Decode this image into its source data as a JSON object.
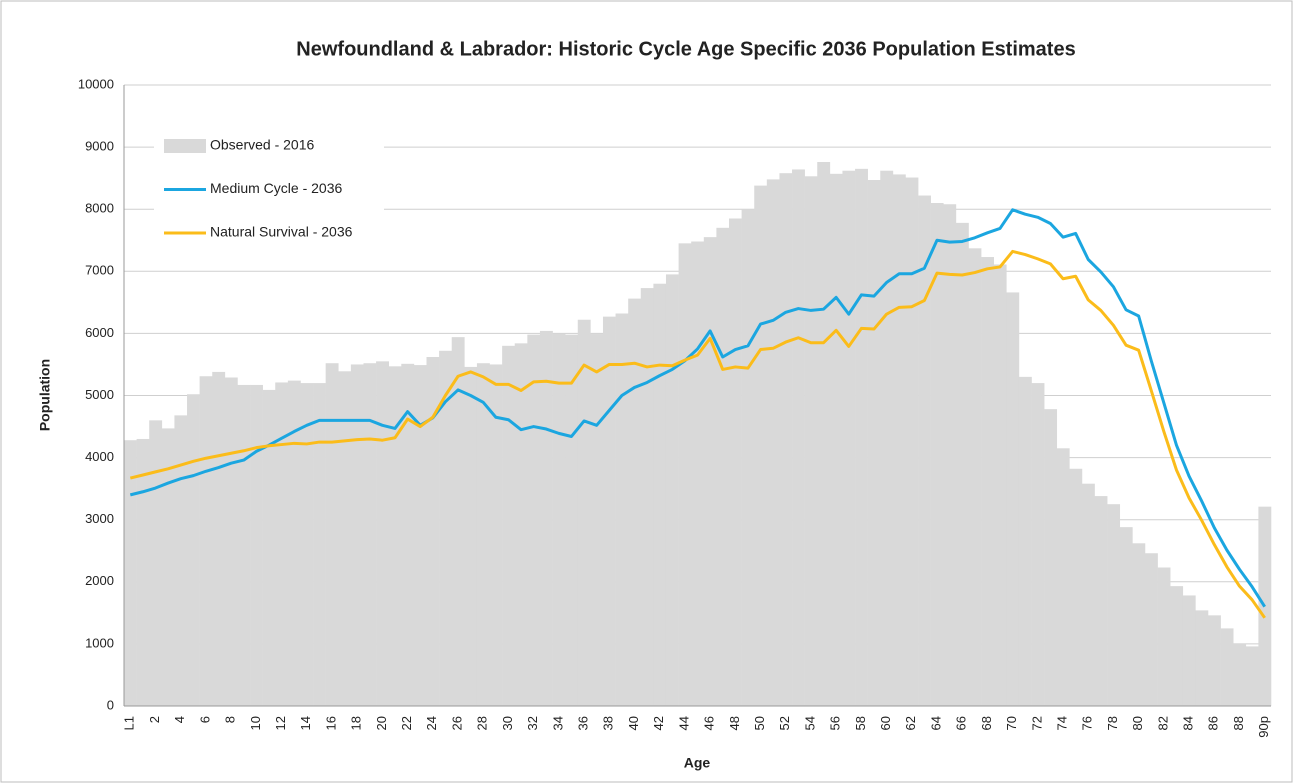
{
  "chart_data": {
    "type": "bar",
    "title": "Newfoundland & Labrador: Historic Cycle Age Specific 2036 Population Estimates",
    "x_label": "Age",
    "y_label": "Population",
    "categories": [
      "L1",
      null,
      "2",
      null,
      "4",
      null,
      "6",
      null,
      "8",
      null,
      "10",
      null,
      "12",
      null,
      "14",
      null,
      "16",
      null,
      "18",
      null,
      "20",
      null,
      "22",
      null,
      "24",
      null,
      "26",
      null,
      "28",
      null,
      "30",
      null,
      "32",
      null,
      "34",
      null,
      "36",
      null,
      "38",
      null,
      "40",
      null,
      "42",
      null,
      "44",
      null,
      "46",
      null,
      "48",
      null,
      "50",
      null,
      "52",
      null,
      "54",
      null,
      "56",
      null,
      "58",
      null,
      "60",
      null,
      "62",
      null,
      "64",
      null,
      "66",
      null,
      "68",
      null,
      "70",
      null,
      "72",
      null,
      "74",
      null,
      "76",
      null,
      "78",
      null,
      "80",
      null,
      "82",
      null,
      "84",
      null,
      "86",
      null,
      "88",
      null,
      "90p"
    ],
    "series": [
      {
        "name": "Observed - 2016",
        "type": "bar",
        "color": "#d9d9d9",
        "values": [
          4280,
          4300,
          4600,
          4470,
          4680,
          5020,
          5310,
          5380,
          5290,
          5170,
          5170,
          5090,
          5210,
          5240,
          5200,
          5200,
          5520,
          5390,
          5500,
          5520,
          5550,
          5470,
          5510,
          5490,
          5620,
          5720,
          5940,
          5460,
          5520,
          5500,
          5800,
          5840,
          5980,
          6040,
          6000,
          5980,
          6220,
          5990,
          6270,
          6320,
          6560,
          6730,
          6800,
          6950,
          7450,
          7480,
          7550,
          7700,
          7850,
          8000,
          8380,
          8480,
          8580,
          8640,
          8530,
          8760,
          8570,
          8620,
          8650,
          8470,
          8620,
          8560,
          8510,
          8220,
          8100,
          8080,
          7780,
          7370,
          7230,
          7110,
          6660,
          5300,
          5200,
          4780,
          4150,
          3820,
          3580,
          3380,
          3250,
          2880,
          2620,
          2460,
          2230,
          1930,
          1780,
          1540,
          1460,
          1250,
          1000,
          960,
          3210
        ]
      },
      {
        "name": "Medium Cycle - 2036",
        "type": "line",
        "color": "#1ba6e0",
        "values": [
          3400,
          3450,
          3510,
          3590,
          3660,
          3710,
          3780,
          3840,
          3910,
          3960,
          4100,
          4200,
          4310,
          4420,
          4520,
          4600,
          4600,
          4600,
          4600,
          4600,
          4520,
          4470,
          4740,
          4520,
          4640,
          4900,
          5090,
          5000,
          4890,
          4650,
          4610,
          4450,
          4500,
          4460,
          4390,
          4340,
          4590,
          4520,
          4760,
          5000,
          5130,
          5210,
          5320,
          5420,
          5560,
          5750,
          6040,
          5620,
          5740,
          5800,
          6150,
          6210,
          6340,
          6400,
          6370,
          6390,
          6580,
          6310,
          6620,
          6600,
          6820,
          6960,
          6960,
          7050,
          7500,
          7470,
          7480,
          7540,
          7620,
          7690,
          7990,
          7920,
          7870,
          7770,
          7550,
          7610,
          7190,
          6990,
          6750,
          6380,
          6280,
          5560,
          4880,
          4200,
          3700,
          3300,
          2870,
          2510,
          2200,
          1920,
          1600
        ]
      },
      {
        "name": "Natural Survival - 2036",
        "type": "line",
        "color": "#fbbc1a",
        "values": [
          3670,
          3720,
          3770,
          3820,
          3880,
          3940,
          3990,
          4030,
          4070,
          4110,
          4160,
          4190,
          4210,
          4230,
          4220,
          4250,
          4250,
          4270,
          4290,
          4300,
          4280,
          4320,
          4620,
          4500,
          4650,
          5000,
          5310,
          5380,
          5300,
          5180,
          5180,
          5080,
          5220,
          5230,
          5200,
          5200,
          5490,
          5380,
          5500,
          5500,
          5520,
          5460,
          5490,
          5480,
          5570,
          5650,
          5920,
          5420,
          5460,
          5440,
          5740,
          5760,
          5860,
          5930,
          5850,
          5850,
          6050,
          5790,
          6080,
          6070,
          6310,
          6420,
          6430,
          6530,
          6970,
          6950,
          6940,
          6980,
          7040,
          7070,
          7320,
          7270,
          7200,
          7120,
          6880,
          6920,
          6540,
          6370,
          6130,
          5810,
          5730,
          5080,
          4420,
          3800,
          3350,
          2990,
          2600,
          2240,
          1930,
          1710,
          1420
        ]
      }
    ],
    "ylim": [
      0,
      10000
    ],
    "yticks": [
      0,
      1000,
      2000,
      3000,
      4000,
      5000,
      6000,
      7000,
      8000,
      9000,
      10000
    ],
    "grid": true,
    "legend": "top-left"
  }
}
